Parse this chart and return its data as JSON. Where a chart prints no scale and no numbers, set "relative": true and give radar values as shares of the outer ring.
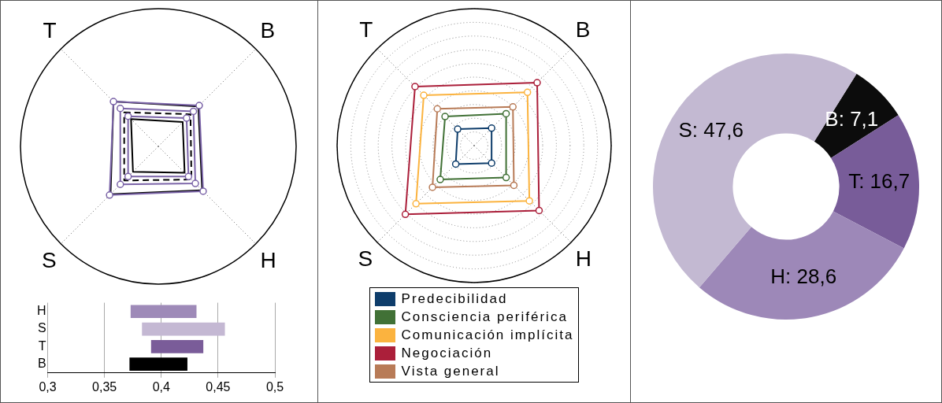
{
  "chart_data": [
    {
      "type": "radar",
      "categories": [
        "T",
        "B",
        "H",
        "S"
      ],
      "relative": true,
      "series": [
        {
          "color": "#7b64a8",
          "marker": "circle",
          "values": [
            0.46,
            0.42,
            0.46,
            0.5
          ]
        },
        {
          "color": "#7b64a8",
          "marker": "circle",
          "values": [
            0.39,
            0.36,
            0.38,
            0.39
          ]
        },
        {
          "color": "#7b64a8",
          "marker": "circle",
          "values": [
            0.31,
            0.29,
            0.31,
            0.31
          ]
        },
        {
          "color": "#000000",
          "values": [
            0.46,
            0.41,
            0.45,
            0.49
          ]
        },
        {
          "color": "#000000",
          "line_style": "dashed",
          "values": [
            0.35,
            0.33,
            0.34,
            0.35
          ]
        },
        {
          "color": "#000000",
          "values": [
            0.28,
            0.25,
            0.27,
            0.26
          ]
        }
      ]
    },
    {
      "type": "bar",
      "orientation": "horizontal",
      "categories": [
        "H",
        "S",
        "T",
        "B"
      ],
      "base": [
        0.373,
        0.383,
        0.391,
        0.372
      ],
      "values": [
        0.058,
        0.073,
        0.046,
        0.051
      ],
      "colors": [
        "#9e8ab8",
        "#c4b8d3",
        "#7a5c99",
        "#000000"
      ],
      "xlim": [
        0.3,
        0.5
      ],
      "xticks": [
        {
          "value": 0.3,
          "label": "0,3"
        },
        {
          "value": 0.35,
          "label": "0,35"
        },
        {
          "value": 0.4,
          "label": "0,4"
        },
        {
          "value": 0.45,
          "label": "0,45"
        },
        {
          "value": 0.5,
          "label": "0,5"
        }
      ],
      "grid": "x"
    },
    {
      "type": "radar",
      "categories": [
        "T",
        "B",
        "H",
        "S"
      ],
      "relative": true,
      "grid": true,
      "marker": "circle",
      "legend": "bottom",
      "series": [
        {
          "name": "Predecibilidad",
          "color": "#0e3d6b",
          "values": [
            0.17,
            0.18,
            0.18,
            0.19
          ]
        },
        {
          "name": "Consciencia periférica",
          "color": "#417136",
          "values": [
            0.3,
            0.33,
            0.33,
            0.35
          ]
        },
        {
          "name": "Comunicación implícita",
          "color": "#fbb33f",
          "values": [
            0.52,
            0.55,
            0.57,
            0.6
          ]
        },
        {
          "name": "Negociación",
          "color": "#ab1f3a",
          "values": [
            0.61,
            0.65,
            0.67,
            0.71
          ]
        },
        {
          "name": "Vista general",
          "color": "#b87b57",
          "values": [
            0.38,
            0.4,
            0.41,
            0.43
          ]
        }
      ]
    },
    {
      "type": "donut",
      "categories": [
        "B",
        "T",
        "H",
        "S"
      ],
      "values": [
        7.1,
        16.7,
        28.6,
        47.6
      ],
      "colors": [
        "#0c0c0c",
        "#785c99",
        "#9d88b8",
        "#c3b9d2"
      ],
      "value_labels": [
        "7,1",
        "16,7",
        "28,6",
        "47,6"
      ]
    }
  ]
}
